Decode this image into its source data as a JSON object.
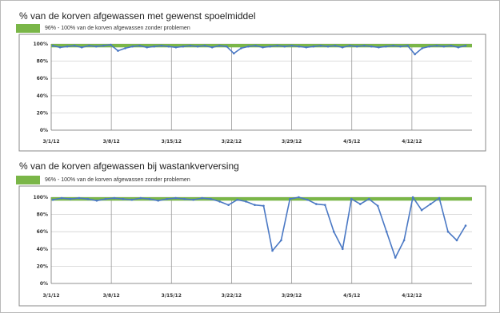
{
  "chart_data": [
    {
      "type": "line",
      "title": "% van de korven afgewassen met gewenst spoelmiddel",
      "band_label": "96% - 100% van de korven afgewassen zonder problemen",
      "band": [
        96,
        100
      ],
      "colors": {
        "band": "#7ab648",
        "line": "#4a78c4"
      },
      "ylim": [
        0,
        100
      ],
      "y_ticks": [
        "0%",
        "20%",
        "40%",
        "60%",
        "80%",
        "100%"
      ],
      "x_ticks": [
        "3/1/12",
        "3/8/12",
        "3/15/12",
        "3/22/12",
        "3/29/12",
        "4/5/12",
        "4/12/12"
      ],
      "grid": true,
      "series": [
        {
          "values": [
            98,
            96,
            97,
            98,
            96,
            98,
            97,
            98,
            99,
            92,
            95,
            97,
            98,
            96,
            97,
            98,
            97,
            96,
            97,
            98,
            97,
            98,
            96,
            98,
            97,
            89,
            95,
            97,
            98,
            96,
            97,
            98,
            97,
            98,
            97,
            96,
            97,
            98,
            97,
            98,
            96,
            98,
            97,
            98,
            97,
            96,
            97,
            98,
            97,
            98,
            88,
            95,
            97,
            98,
            97,
            98,
            96,
            98
          ]
        }
      ]
    },
    {
      "type": "line",
      "title": "% van de korven afgewassen bij wastankverversing",
      "band_label": "96% - 100% van de korven afgewassen zonder problemen",
      "band": [
        96,
        100
      ],
      "colors": {
        "band": "#7ab648",
        "line": "#4a78c4"
      },
      "ylim": [
        0,
        100
      ],
      "y_ticks": [
        "0%",
        "20%",
        "40%",
        "60%",
        "80%",
        "100%"
      ],
      "x_ticks": [
        "3/1/12",
        "3/8/12",
        "3/15/12",
        "3/22/12",
        "3/29/12",
        "4/5/12",
        "4/12/12"
      ],
      "grid": true,
      "series": [
        {
          "values": [
            97,
            99,
            98,
            99,
            98,
            96,
            98,
            99,
            98,
            97,
            99,
            98,
            96,
            98,
            99,
            98,
            97,
            99,
            98,
            95,
            91,
            97,
            95,
            91,
            90,
            38,
            50,
            98,
            100,
            97,
            92,
            91,
            60,
            40,
            98,
            92,
            98,
            90,
            60,
            30,
            50,
            100,
            85,
            92,
            99,
            60,
            50,
            67
          ]
        }
      ]
    }
  ]
}
